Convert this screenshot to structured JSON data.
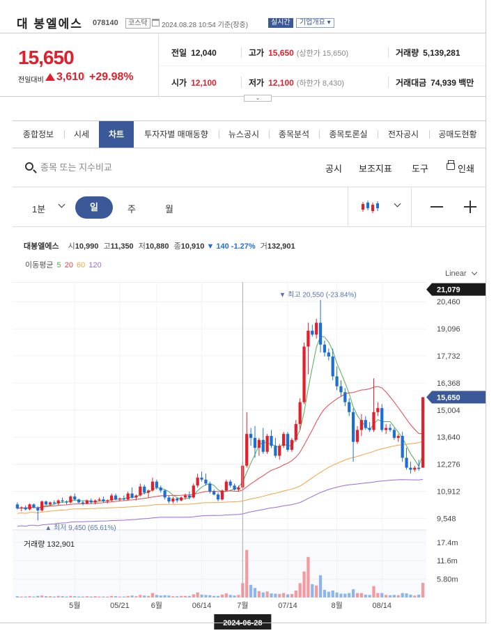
{
  "header": {
    "stock_name": "대 봉엘에스",
    "stock_code": "078140",
    "market": "코스닥",
    "as_of": "2024.08.28 10:54  기준(장중)",
    "realtime_label": "실시간",
    "company_info_label": "기업개요 ▾"
  },
  "summary": {
    "current_price": "15,650",
    "change_label": "전일대비",
    "change_amount": "3,610",
    "change_rate": "+29.98%",
    "prev_close_label": "전일",
    "prev_close": "12,040",
    "high_label": "고가",
    "high": "15,650",
    "upper_limit": "(상한가 15,650)",
    "volume_label": "거래량",
    "volume": "5,139,281",
    "open_label": "시가",
    "open": "12,100",
    "low_label": "저가",
    "low": "12,100",
    "lower_limit": "(하한가 8,430)",
    "amount_label": "거래대금",
    "amount": "74,939 백만",
    "expand_label": "⌄",
    "colors": {
      "up": "#e0202c",
      "down": "#1d6fd6",
      "accent": "#3b5998"
    }
  },
  "tabs": [
    {
      "label": "종합정보",
      "active": false
    },
    {
      "label": "시세",
      "active": false
    },
    {
      "label": "차트",
      "active": true
    },
    {
      "label": "투자자별 매매동향",
      "active": false
    },
    {
      "label": "뉴스공시",
      "active": false
    },
    {
      "label": "종목분석",
      "active": false
    },
    {
      "label": "종목토론실",
      "active": false
    },
    {
      "label": "전자공시",
      "active": false
    },
    {
      "label": "공매도현황",
      "active": false
    }
  ],
  "toolbar": {
    "search_placeholder": "종목 또는 지수비교",
    "notice_label": "공시",
    "indicator_label": "보조지표",
    "tools_label": "도구",
    "print_label": "인쇄"
  },
  "period": {
    "interval_label": "1분",
    "day_label": "일",
    "week_label": "주",
    "month_label": "월",
    "chart_type_icon": "candlestick-icon"
  },
  "legend": {
    "name": "대봉엘에스",
    "open_label": "시",
    "open": "10,990",
    "high_label": "고",
    "high": "11,350",
    "low_label": "저",
    "low": "10,880",
    "close_label": "종",
    "close": "10,910",
    "change": "▼ 140 -1.27%",
    "volume_label": "거",
    "volume": "132,901",
    "ma_label": "이동평균",
    "ma_periods": [
      "5",
      "20",
      "60",
      "120"
    ],
    "ma_colors": [
      "#4caf50",
      "#e8434b",
      "#f4a340",
      "#9b6bd9"
    ],
    "scale_label": "Linear"
  },
  "chart_data": {
    "type": "candlestick",
    "y_ticks": [
      9548,
      10912,
      12276,
      13640,
      15004,
      16368,
      17732,
      19096,
      20460
    ],
    "y_tick_labels": [
      "9,548",
      "10,912",
      "12,276",
      "13,640",
      "15,004",
      "16,368",
      "17,732",
      "19,096",
      "20,460"
    ],
    "ylim": [
      9000,
      21100
    ],
    "x_tick_labels": [
      "5월",
      "05/21",
      "6월",
      "06/14",
      "7월",
      "07/14",
      "8월",
      "08/14"
    ],
    "x_tick_index": [
      14,
      25,
      34,
      45,
      55,
      66,
      78,
      89
    ],
    "crosshair_index": 55,
    "crosshair_label": "2024-06-28",
    "max_label": "▼ 최고 20,550 (-23.84%)",
    "max_index": 74,
    "max_value": 20550,
    "min_label": "▲ 최저 9,450 (65.61%)",
    "min_index": 5,
    "min_value": 9450,
    "top_price_label": "21,079",
    "top_price_value": 21079,
    "current_price_label": "15,650",
    "current_price_value": 15650,
    "volume_label": "거래량 132,901",
    "volume_ticks": [
      5.8,
      11.6,
      17.4
    ],
    "volume_tick_labels": [
      "5.80m",
      "11.6m",
      "17.4m"
    ],
    "volume_max": 20,
    "candles": [
      [
        10250,
        10350,
        10000,
        10050
      ],
      [
        10050,
        10150,
        9900,
        10100
      ],
      [
        10100,
        10200,
        9950,
        10000
      ],
      [
        10000,
        10300,
        9950,
        10250
      ],
      [
        10250,
        10300,
        10050,
        10100
      ],
      [
        10100,
        10150,
        9450,
        9950
      ],
      [
        9950,
        10450,
        9900,
        10400
      ],
      [
        10400,
        10450,
        10200,
        10250
      ],
      [
        10250,
        10400,
        10150,
        10350
      ],
      [
        10350,
        10450,
        10250,
        10300
      ],
      [
        10300,
        10500,
        10200,
        10450
      ],
      [
        10450,
        10600,
        10350,
        10400
      ],
      [
        10400,
        10450,
        10250,
        10350
      ],
      [
        10350,
        10700,
        10300,
        10650
      ],
      [
        10650,
        10800,
        10450,
        10500
      ],
      [
        10500,
        10550,
        10300,
        10350
      ],
      [
        10350,
        10450,
        10200,
        10300
      ],
      [
        10300,
        10500,
        10250,
        10450
      ],
      [
        10450,
        10550,
        10300,
        10350
      ],
      [
        10350,
        10500,
        10250,
        10450
      ],
      [
        10450,
        10600,
        10400,
        10500
      ],
      [
        10500,
        10650,
        10350,
        10400
      ],
      [
        10400,
        10500,
        10300,
        10450
      ],
      [
        10450,
        10800,
        10400,
        10700
      ],
      [
        10700,
        10800,
        10450,
        10500
      ],
      [
        10500,
        10600,
        10400,
        10550
      ],
      [
        10550,
        10700,
        10450,
        10500
      ],
      [
        10500,
        10900,
        10450,
        10800
      ],
      [
        10800,
        11100,
        10550,
        10600
      ],
      [
        10600,
        10750,
        10450,
        10700
      ],
      [
        10700,
        11300,
        10650,
        11150
      ],
      [
        11150,
        11250,
        10750,
        10850
      ],
      [
        10850,
        11000,
        10600,
        10950
      ],
      [
        10950,
        11600,
        10900,
        11400
      ],
      [
        11400,
        11500,
        11000,
        11100
      ],
      [
        11100,
        11200,
        10850,
        10950
      ],
      [
        10950,
        11000,
        10500,
        10600
      ],
      [
        10600,
        10700,
        10300,
        10400
      ],
      [
        10400,
        10650,
        10300,
        10550
      ],
      [
        10550,
        10600,
        10350,
        10450
      ],
      [
        10450,
        10650,
        10400,
        10600
      ],
      [
        10600,
        10800,
        10500,
        10700
      ],
      [
        10700,
        10900,
        10500,
        10600
      ],
      [
        10600,
        11300,
        10550,
        11200
      ],
      [
        11200,
        11800,
        11100,
        11600
      ],
      [
        11600,
        11900,
        11400,
        11500
      ],
      [
        11500,
        11800,
        11200,
        11300
      ],
      [
        11300,
        11400,
        10800,
        10900
      ],
      [
        10900,
        11000,
        10700,
        10750
      ],
      [
        10750,
        10850,
        10400,
        10500
      ],
      [
        10500,
        11000,
        10450,
        10950
      ],
      [
        10950,
        11500,
        10900,
        11400
      ],
      [
        11400,
        11500,
        11100,
        11200
      ],
      [
        11200,
        11300,
        10950,
        11000
      ],
      [
        11000,
        11200,
        10900,
        11100
      ],
      [
        11100,
        12400,
        11000,
        12200
      ],
      [
        12200,
        14900,
        12100,
        13800
      ],
      [
        13800,
        14100,
        13200,
        13600
      ],
      [
        13600,
        14200,
        12600,
        13100
      ],
      [
        13100,
        13600,
        12700,
        13500
      ],
      [
        13500,
        14100,
        12800,
        12900
      ],
      [
        12900,
        13800,
        12800,
        13700
      ],
      [
        13700,
        14000,
        13100,
        13200
      ],
      [
        13200,
        13600,
        12600,
        12700
      ],
      [
        12700,
        13300,
        12500,
        13200
      ],
      [
        13200,
        13900,
        13100,
        13800
      ],
      [
        13800,
        13900,
        12900,
        13000
      ],
      [
        13000,
        13600,
        12900,
        13500
      ],
      [
        13500,
        14500,
        13400,
        14300
      ],
      [
        14300,
        15600,
        14000,
        15400
      ],
      [
        15400,
        18400,
        15300,
        18200
      ],
      [
        18200,
        19400,
        16800,
        19000
      ],
      [
        19000,
        19300,
        18700,
        18800
      ],
      [
        18800,
        19600,
        18600,
        19400
      ],
      [
        19400,
        20550,
        17900,
        18300
      ],
      [
        18300,
        18500,
        17700,
        17900
      ],
      [
        17900,
        18100,
        17500,
        17700
      ],
      [
        17700,
        18100,
        16500,
        16700
      ],
      [
        16700,
        17200,
        16000,
        16200
      ],
      [
        16200,
        16500,
        15700,
        15900
      ],
      [
        15900,
        16100,
        15200,
        15400
      ],
      [
        15400,
        15600,
        14700,
        14900
      ],
      [
        14900,
        15100,
        12400,
        13400
      ],
      [
        13400,
        14200,
        13300,
        14000
      ],
      [
        14000,
        14800,
        13700,
        14500
      ],
      [
        14500,
        14700,
        14000,
        14100
      ],
      [
        14100,
        14400,
        13900,
        14000
      ],
      [
        14000,
        16600,
        13900,
        14900
      ],
      [
        14900,
        15400,
        14700,
        15100
      ],
      [
        15100,
        15300,
        13900,
        14000
      ],
      [
        14000,
        14300,
        13800,
        14100
      ],
      [
        14100,
        14300,
        13900,
        14000
      ],
      [
        14000,
        14100,
        13500,
        13600
      ],
      [
        13600,
        13800,
        13400,
        13700
      ],
      [
        13700,
        13900,
        12400,
        12600
      ],
      [
        12600,
        13100,
        12000,
        12100
      ],
      [
        12100,
        12400,
        11800,
        12000
      ],
      [
        12000,
        12200,
        11900,
        12100
      ],
      [
        12100,
        12500,
        11950,
        12040
      ],
      [
        12100,
        15650,
        12100,
        15650
      ]
    ],
    "volumes": [
      0.4,
      0.3,
      0.3,
      0.4,
      0.3,
      0.5,
      0.6,
      0.4,
      0.4,
      0.3,
      0.5,
      0.4,
      0.3,
      0.5,
      0.4,
      0.3,
      0.3,
      0.4,
      0.3,
      0.4,
      0.3,
      0.3,
      0.3,
      0.5,
      0.4,
      0.3,
      0.3,
      0.5,
      0.6,
      0.4,
      0.8,
      0.6,
      0.5,
      1.4,
      0.8,
      0.6,
      0.7,
      0.6,
      0.4,
      0.4,
      0.5,
      0.5,
      0.5,
      1.0,
      1.6,
      0.9,
      0.8,
      0.7,
      0.5,
      0.5,
      0.9,
      1.3,
      0.8,
      0.6,
      0.8,
      4.5,
      15.0,
      4.0,
      3.0,
      2.0,
      1.6,
      1.9,
      1.3,
      1.2,
      1.1,
      1.4,
      1.0,
      1.1,
      2.2,
      4.5,
      8.2,
      12.8,
      4.2,
      3.8,
      7.0,
      2.4,
      1.8,
      2.2,
      1.6,
      1.2,
      1.2,
      1.4,
      2.6,
      1.4,
      1.4,
      0.9,
      0.8,
      3.6,
      1.4,
      1.4,
      0.8,
      0.7,
      0.8,
      0.7,
      1.4,
      1.3,
      0.9,
      0.6,
      0.9,
      4.6
    ]
  }
}
